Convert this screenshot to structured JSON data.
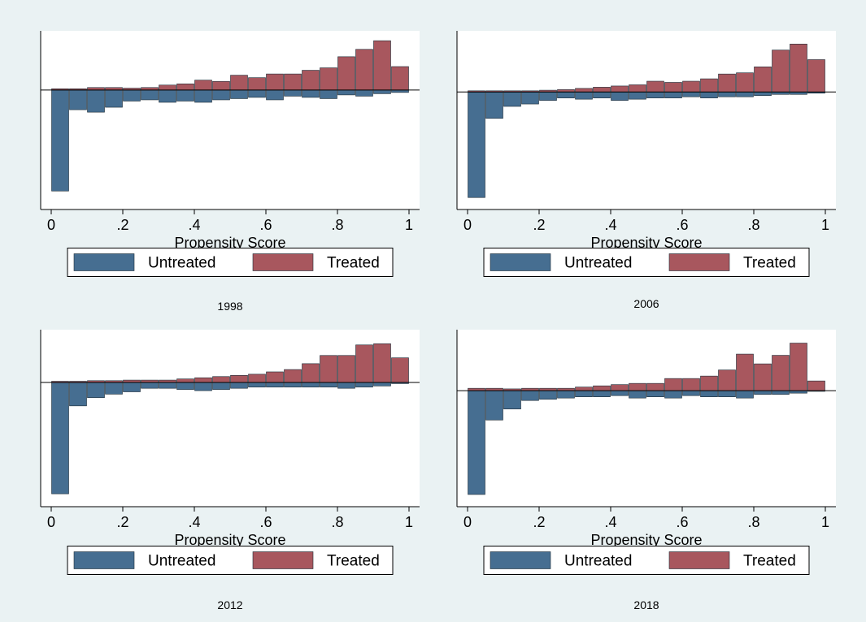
{
  "colors": {
    "background": "#eaf2f3",
    "plot_background": "#ffffff",
    "untreated": "#466e91",
    "treated": "#a8575e",
    "bar_outline": "#1c2b36",
    "axis": "#000000"
  },
  "legend_labels": {
    "untreated": "Untreated",
    "treated": "Treated"
  },
  "chart_data": [
    {
      "type": "bar",
      "subtitle": "1998",
      "xlabel": "Propensity Score",
      "xticks": [
        "0",
        ".2",
        ".4",
        ".6",
        ".8",
        "1"
      ],
      "xlim": [
        0,
        1
      ],
      "bin_width": 0.05,
      "ylim": [
        -0.97,
        0.48
      ],
      "legend": "bottom",
      "x": [
        0.025,
        0.075,
        0.125,
        0.175,
        0.225,
        0.275,
        0.325,
        0.375,
        0.425,
        0.475,
        0.525,
        0.575,
        0.625,
        0.675,
        0.725,
        0.775,
        0.825,
        0.875,
        0.925,
        0.975
      ],
      "series": [
        {
          "name": "Untreated",
          "values": [
            -0.82,
            -0.16,
            -0.18,
            -0.14,
            -0.09,
            -0.08,
            -0.1,
            -0.09,
            -0.1,
            -0.08,
            -0.07,
            -0.06,
            -0.08,
            -0.05,
            -0.06,
            -0.07,
            -0.04,
            -0.05,
            -0.03,
            -0.02
          ]
        },
        {
          "name": "Treated",
          "values": [
            0.01,
            0.01,
            0.02,
            0.02,
            0.015,
            0.02,
            0.04,
            0.05,
            0.08,
            0.07,
            0.12,
            0.1,
            0.13,
            0.13,
            0.16,
            0.18,
            0.27,
            0.33,
            0.4,
            0.19
          ]
        }
      ]
    },
    {
      "type": "bar",
      "subtitle": "2006",
      "xlabel": "Propensity Score",
      "xticks": [
        "0",
        ".2",
        ".4",
        ".6",
        ".8",
        "1"
      ],
      "xlim": [
        0,
        1
      ],
      "bin_width": 0.05,
      "ylim": [
        -0.98,
        0.51
      ],
      "legend": "bottom",
      "x": [
        0.025,
        0.075,
        0.125,
        0.175,
        0.225,
        0.275,
        0.325,
        0.375,
        0.425,
        0.475,
        0.525,
        0.575,
        0.625,
        0.675,
        0.725,
        0.775,
        0.825,
        0.875,
        0.925,
        0.975
      ],
      "series": [
        {
          "name": "Untreated",
          "values": [
            -0.88,
            -0.22,
            -0.12,
            -0.1,
            -0.07,
            -0.05,
            -0.06,
            -0.05,
            -0.07,
            -0.06,
            -0.05,
            -0.05,
            -0.04,
            -0.05,
            -0.04,
            -0.04,
            -0.03,
            -0.02,
            -0.02,
            -0.01
          ]
        },
        {
          "name": "Treated",
          "values": [
            0.01,
            0.01,
            0.01,
            0.01,
            0.015,
            0.02,
            0.03,
            0.04,
            0.05,
            0.06,
            0.09,
            0.08,
            0.09,
            0.11,
            0.15,
            0.16,
            0.21,
            0.35,
            0.4,
            0.27
          ]
        }
      ]
    },
    {
      "type": "bar",
      "subtitle": "2012",
      "xlabel": "Propensity Score",
      "xticks": [
        "0",
        ".2",
        ".4",
        ".6",
        ".8",
        "1"
      ],
      "xlim": [
        0,
        1
      ],
      "bin_width": 0.05,
      "ylim": [
        -1.06,
        0.45
      ],
      "legend": "bottom",
      "x": [
        0.025,
        0.075,
        0.125,
        0.175,
        0.225,
        0.275,
        0.325,
        0.375,
        0.425,
        0.475,
        0.525,
        0.575,
        0.625,
        0.675,
        0.725,
        0.775,
        0.825,
        0.875,
        0.925,
        0.975
      ],
      "series": [
        {
          "name": "Untreated",
          "values": [
            -0.95,
            -0.2,
            -0.13,
            -0.1,
            -0.08,
            -0.05,
            -0.05,
            -0.06,
            -0.07,
            -0.06,
            -0.05,
            -0.04,
            -0.04,
            -0.04,
            -0.04,
            -0.04,
            -0.05,
            -0.04,
            -0.03,
            -0.01
          ]
        },
        {
          "name": "Treated",
          "values": [
            0.01,
            0.01,
            0.015,
            0.015,
            0.02,
            0.02,
            0.02,
            0.03,
            0.04,
            0.05,
            0.06,
            0.07,
            0.09,
            0.11,
            0.16,
            0.23,
            0.23,
            0.32,
            0.33,
            0.21
          ]
        }
      ]
    },
    {
      "type": "bar",
      "subtitle": "2018",
      "xlabel": "Propensity Score",
      "xticks": [
        "0",
        ".2",
        ".4",
        ".6",
        ".8",
        "1"
      ],
      "xlim": [
        0,
        1
      ],
      "bin_width": 0.05,
      "ylim": [
        -0.95,
        0.5
      ],
      "legend": "bottom",
      "x": [
        0.025,
        0.075,
        0.125,
        0.175,
        0.225,
        0.275,
        0.325,
        0.375,
        0.425,
        0.475,
        0.525,
        0.575,
        0.625,
        0.675,
        0.725,
        0.775,
        0.825,
        0.875,
        0.925,
        0.975
      ],
      "series": [
        {
          "name": "Untreated",
          "values": [
            -0.85,
            -0.24,
            -0.15,
            -0.08,
            -0.07,
            -0.06,
            -0.05,
            -0.05,
            -0.04,
            -0.06,
            -0.05,
            -0.06,
            -0.04,
            -0.05,
            -0.05,
            -0.06,
            -0.03,
            -0.03,
            -0.02,
            -0.005
          ]
        },
        {
          "name": "Treated",
          "values": [
            0.02,
            0.02,
            0.015,
            0.02,
            0.02,
            0.02,
            0.03,
            0.04,
            0.05,
            0.06,
            0.06,
            0.1,
            0.1,
            0.12,
            0.17,
            0.3,
            0.22,
            0.29,
            0.39,
            0.08
          ]
        }
      ]
    }
  ]
}
